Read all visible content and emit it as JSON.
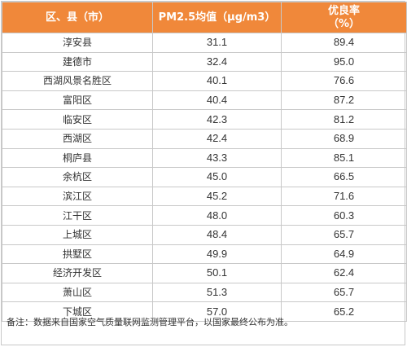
{
  "table": {
    "headers": {
      "region": "区、县（市）",
      "pm25": "PM2.5均值（μg/m3）",
      "rate_line1": "优良率",
      "rate_line2": "（%）"
    },
    "rows": [
      {
        "name": "淳安县",
        "pm25": "31.1",
        "rate": "89.4"
      },
      {
        "name": "建德市",
        "pm25": "32.4",
        "rate": "95.0"
      },
      {
        "name": "西湖风景名胜区",
        "pm25": "40.1",
        "rate": "76.6"
      },
      {
        "name": "富阳区",
        "pm25": "40.4",
        "rate": "87.2"
      },
      {
        "name": "临安区",
        "pm25": "42.3",
        "rate": "81.2"
      },
      {
        "name": "西湖区",
        "pm25": "42.4",
        "rate": "68.9"
      },
      {
        "name": "桐庐县",
        "pm25": "43.3",
        "rate": "85.1"
      },
      {
        "name": "余杭区",
        "pm25": "45.0",
        "rate": "66.5"
      },
      {
        "name": "滨江区",
        "pm25": "45.2",
        "rate": "71.6"
      },
      {
        "name": "江干区",
        "pm25": "48.0",
        "rate": "60.3"
      },
      {
        "name": "上城区",
        "pm25": "48.4",
        "rate": "65.7"
      },
      {
        "name": "拱墅区",
        "pm25": "49.9",
        "rate": "64.9"
      },
      {
        "name": "经济开发区",
        "pm25": "50.1",
        "rate": "62.4"
      },
      {
        "name": "萧山区",
        "pm25": "51.3",
        "rate": "65.7"
      },
      {
        "name": "下城区",
        "pm25": "57.0",
        "rate": "65.2"
      }
    ]
  },
  "note": "备注：数据来自国家空气质量联网监测管理平台，以国家最终公布为准。",
  "colors": {
    "header_bg": "#f0883a",
    "header_text": "#ffffff",
    "border": "#c8c8c8"
  }
}
